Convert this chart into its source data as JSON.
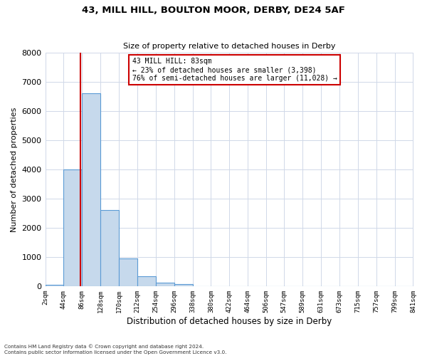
{
  "title": "43, MILL HILL, BOULTON MOOR, DERBY, DE24 5AF",
  "subtitle": "Size of property relative to detached houses in Derby",
  "xlabel": "Distribution of detached houses by size in Derby",
  "ylabel": "Number of detached properties",
  "bar_left_edges": [
    2,
    44,
    86,
    128,
    170,
    212,
    254,
    296,
    338,
    380,
    422,
    464,
    506,
    547,
    589,
    631,
    673,
    715,
    757,
    799
  ],
  "bar_heights": [
    50,
    4000,
    6600,
    2600,
    950,
    330,
    130,
    80,
    0,
    0,
    0,
    0,
    0,
    0,
    0,
    0,
    0,
    0,
    0,
    0
  ],
  "bin_width": 42,
  "bar_color": "#c6d9ec",
  "bar_edge_color": "#5b9bd5",
  "property_line_x": 83,
  "property_line_color": "#cc0000",
  "ylim": [
    0,
    8000
  ],
  "xlim": [
    2,
    841
  ],
  "xtick_labels": [
    "2sqm",
    "44sqm",
    "86sqm",
    "128sqm",
    "170sqm",
    "212sqm",
    "254sqm",
    "296sqm",
    "338sqm",
    "380sqm",
    "422sqm",
    "464sqm",
    "506sqm",
    "547sqm",
    "589sqm",
    "631sqm",
    "673sqm",
    "715sqm",
    "757sqm",
    "799sqm",
    "841sqm"
  ],
  "xtick_positions": [
    2,
    44,
    86,
    128,
    170,
    212,
    254,
    296,
    338,
    380,
    422,
    464,
    506,
    547,
    589,
    631,
    673,
    715,
    757,
    799,
    841
  ],
  "annotation_title": "43 MILL HILL: 83sqm",
  "annotation_line1": "← 23% of detached houses are smaller (3,398)",
  "annotation_line2": "76% of semi-detached houses are larger (11,028) →",
  "annotation_box_color": "#ffffff",
  "annotation_box_edge": "#cc0000",
  "grid_color": "#d0d8e8",
  "background_color": "#ffffff",
  "footnote1": "Contains HM Land Registry data © Crown copyright and database right 2024.",
  "footnote2": "Contains public sector information licensed under the Open Government Licence v3.0."
}
